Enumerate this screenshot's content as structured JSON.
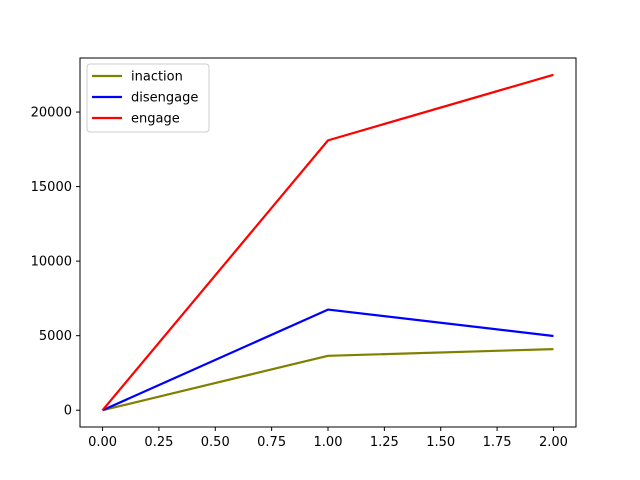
{
  "chart_data": {
    "type": "line",
    "title": "",
    "xlabel": "",
    "ylabel": "",
    "xlim": [
      -0.1,
      2.1
    ],
    "ylim": [
      -1125,
      23625
    ],
    "x": [
      0.0,
      1.0,
      2.0
    ],
    "series": [
      {
        "name": "inaction",
        "color": "#808000",
        "values": [
          0,
          3650,
          4100
        ]
      },
      {
        "name": "disengage",
        "color": "#0000ff",
        "values": [
          0,
          6750,
          4980
        ]
      },
      {
        "name": "engage",
        "color": "#ff0000",
        "values": [
          0,
          18100,
          22500
        ]
      }
    ],
    "x_ticks": [
      {
        "value": 0.0,
        "label": "0.00"
      },
      {
        "value": 0.25,
        "label": "0.25"
      },
      {
        "value": 0.5,
        "label": "0.50"
      },
      {
        "value": 0.75,
        "label": "0.75"
      },
      {
        "value": 1.0,
        "label": "1.00"
      },
      {
        "value": 1.25,
        "label": "1.25"
      },
      {
        "value": 1.5,
        "label": "1.50"
      },
      {
        "value": 1.75,
        "label": "1.75"
      },
      {
        "value": 2.0,
        "label": "2.00"
      }
    ],
    "y_ticks": [
      {
        "value": 0,
        "label": "0"
      },
      {
        "value": 5000,
        "label": "5000"
      },
      {
        "value": 10000,
        "label": "10000"
      },
      {
        "value": 15000,
        "label": "15000"
      },
      {
        "value": 20000,
        "label": "20000"
      }
    ],
    "grid": false,
    "legend_position": "top-left"
  }
}
